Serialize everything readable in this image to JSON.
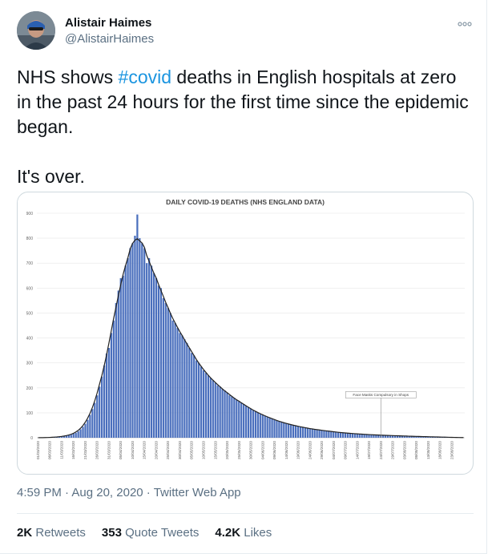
{
  "author": {
    "name": "Alistair Haimes",
    "handle": "@AlistairHaimes"
  },
  "tweet": {
    "text_before_hashtag": "NHS shows ",
    "hashtag": "#covid",
    "text_after_hashtag": " deaths in English hospitals at zero in the past 24 hours for the first time since the epidemic began.",
    "text_line2": "It's over."
  },
  "meta": {
    "time": "4:59 PM",
    "date": "Aug 20, 2020",
    "app": "Twitter Web App",
    "sep": " · "
  },
  "stats": {
    "retweets_count": "2K",
    "retweets_label": " Retweets",
    "quotes_count": "353",
    "quotes_label": " Quote Tweets",
    "likes_count": "4.2K",
    "likes_label": " Likes"
  },
  "icons": {
    "more": "more-dots-icon",
    "avatar": "avatar-image"
  },
  "colors": {
    "link": "#1b95e0",
    "bar": "#4a6fbd",
    "curve": "#222222"
  },
  "chart_data": {
    "type": "bar",
    "title": "DAILY COVID-19 DEATHS (NHS ENGLAND DATA)",
    "annotation": "Face Masks Compulsory in Shops",
    "annotation_date": "24/07/2020",
    "ylim": [
      0,
      900
    ],
    "yticks": [
      "0",
      "100",
      "200",
      "300",
      "400",
      "500",
      "600",
      "700",
      "800",
      "900"
    ],
    "xtick_labels": [
      "01/03/2020",
      "06/03/2020",
      "11/03/2020",
      "16/03/2020",
      "21/03/2020",
      "26/03/2020",
      "31/03/2020",
      "05/04/2020",
      "10/04/2020",
      "15/04/2020",
      "20/04/2020",
      "25/04/2020",
      "30/04/2020",
      "05/05/2020",
      "10/05/2020",
      "15/05/2020",
      "20/05/2020",
      "25/05/2020",
      "30/05/2020",
      "04/06/2020",
      "09/06/2020",
      "14/06/2020",
      "19/06/2020",
      "24/06/2020",
      "29/06/2020",
      "04/07/2020",
      "09/07/2020",
      "14/07/2020",
      "19/07/2020",
      "24/07/2020",
      "29/07/2020",
      "03/08/2020",
      "08/08/2020",
      "13/08/2020",
      "18/08/2020",
      "23/08/2020"
    ],
    "start_date": "01/03/2020",
    "values": [
      0,
      0,
      0,
      1,
      1,
      1,
      2,
      2,
      3,
      4,
      5,
      6,
      8,
      10,
      12,
      16,
      20,
      26,
      34,
      44,
      56,
      72,
      92,
      115,
      140,
      170,
      205,
      245,
      290,
      338,
      360,
      420,
      470,
      540,
      590,
      640,
      650,
      690,
      720,
      760,
      780,
      810,
      895,
      800,
      780,
      760,
      700,
      720,
      690,
      660,
      640,
      610,
      600,
      560,
      540,
      520,
      500,
      470,
      460,
      440,
      420,
      410,
      395,
      380,
      360,
      340,
      330,
      310,
      300,
      285,
      270,
      260,
      250,
      240,
      230,
      220,
      210,
      205,
      195,
      190,
      180,
      170,
      165,
      160,
      152,
      145,
      140,
      135,
      128,
      122,
      116,
      110,
      105,
      100,
      96,
      92,
      88,
      84,
      80,
      76,
      72,
      69,
      66,
      63,
      60,
      57,
      55,
      52,
      50,
      48,
      46,
      44,
      42,
      40,
      38,
      37,
      35,
      34,
      32,
      31,
      30,
      29,
      28,
      26,
      25,
      24,
      23,
      22,
      21,
      20,
      19,
      18,
      18,
      17,
      16,
      16,
      15,
      14,
      14,
      13,
      13,
      12,
      12,
      11,
      11,
      10,
      10,
      10,
      9,
      9,
      9,
      8,
      8,
      8,
      7,
      7,
      7,
      6,
      6,
      6,
      5,
      5,
      5,
      5,
      4,
      4,
      4,
      4,
      3,
      3,
      3,
      3,
      2,
      2,
      2,
      2,
      1,
      1,
      1,
      1,
      0
    ]
  }
}
